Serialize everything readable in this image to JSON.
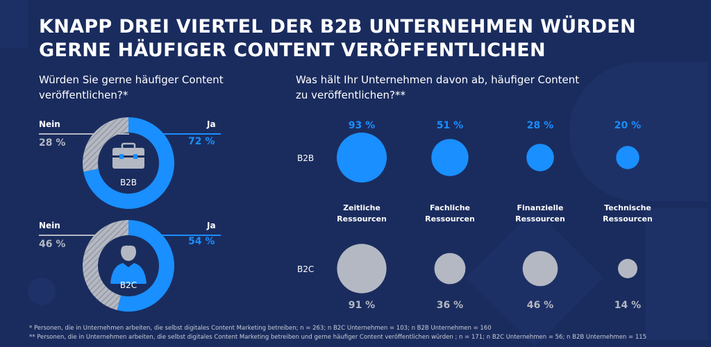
{
  "title_lines": [
    "KNAPP DREI VIERTEL DER B2B UNTERNEHMEN WÜRDEN",
    "GERNE HÄUFIGER CONTENT VERÖFFENTLICHEN"
  ],
  "left_question_lines": [
    "Würden Sie gerne häufiger Content",
    "veröffentlichen?*"
  ],
  "right_question_lines": [
    "Was hält Ihr Unternehmen davon ab, häufiger Content",
    "zu veröffentlichen?**"
  ],
  "colors": {
    "background": "#1a2c5e",
    "blue": "#1a8fff",
    "grey": "#b4b8c2"
  },
  "chart_data": [
    {
      "type": "pie",
      "variant": "donut",
      "center_label": "B2B",
      "icon": "briefcase-icon",
      "slices": [
        {
          "label": "Nein",
          "value": 28,
          "display": "28 %",
          "color": "#b4b8c2"
        },
        {
          "label": "Ja",
          "value": 72,
          "display": "72 %",
          "color": "#1a8fff"
        }
      ]
    },
    {
      "type": "pie",
      "variant": "donut",
      "center_label": "B2C",
      "icon": "person-icon",
      "slices": [
        {
          "label": "Nein",
          "value": 46,
          "display": "46 %",
          "color": "#b4b8c2"
        },
        {
          "label": "Ja",
          "value": 54,
          "display": "54 %",
          "color": "#1a8fff"
        }
      ]
    },
    {
      "type": "scatter",
      "variant": "bubble",
      "categories": [
        "Zeitliche Ressourcen",
        "Fachliche Ressourcen",
        "Finanzielle Ressourcen",
        "Technische Ressourcen"
      ],
      "category_lines": [
        [
          "Zeitliche",
          "Ressourcen"
        ],
        [
          "Fachliche",
          "Ressourcen"
        ],
        [
          "Finanzielle",
          "Ressourcen"
        ],
        [
          "Technische",
          "Ressourcen"
        ]
      ],
      "series": [
        {
          "name": "B2B",
          "values": [
            93,
            51,
            28,
            20
          ],
          "labels": [
            "93 %",
            "51 %",
            "28 %",
            "20 %"
          ],
          "color": "#1a8fff"
        },
        {
          "name": "B2C",
          "values": [
            91,
            36,
            46,
            14
          ],
          "labels": [
            "91 %",
            "36 %",
            "46 %",
            "14 %"
          ],
          "color": "#b4b8c2"
        }
      ]
    }
  ],
  "footnotes": [
    "* Personen, die in Unternehmen arbeiten, die selbst digitales Content Marketing betreiben; n = 263; n B2C Unternehmen = 103; n B2B Unternehmen = 160",
    "** Personen, die in Unternehmen arbeiten, die selbst digitales Content Marketing betreiben und gerne häufiger Content veröffentlichen würden ; n = 171; n B2C Unternehmen = 56; n B2B Unternehmen = 115"
  ]
}
